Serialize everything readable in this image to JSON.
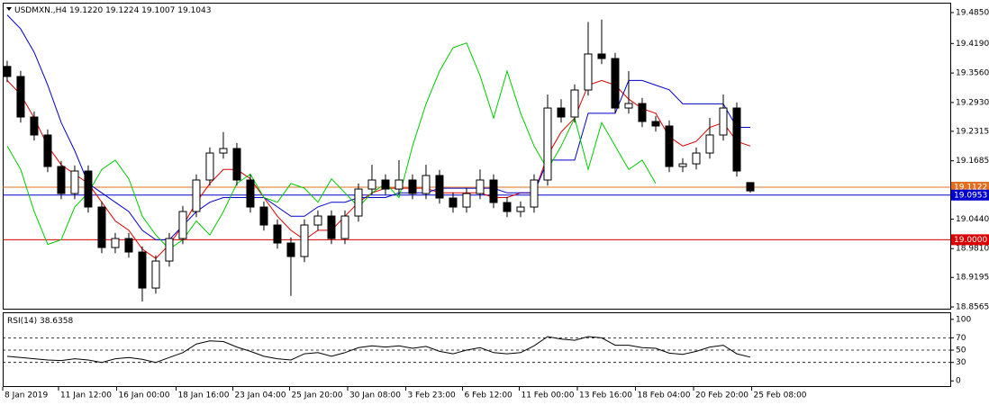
{
  "chart_data": [
    {
      "type": "candlestick",
      "title": "USDMXN.,H4",
      "ohlc_labels": [
        "19.1220",
        "19.1224",
        "19.1007",
        "19.1043"
      ],
      "open": [
        19.37,
        19.3485,
        19.262,
        19.2236,
        19.1563,
        19.0986,
        19.1467,
        19.0698,
        18.9833,
        19.0025,
        18.9737,
        18.8968,
        18.9545,
        19.0025,
        19.0602,
        19.1275,
        19.1851,
        19.1947,
        19.1275,
        19.0698,
        19.0314,
        18.9929,
        18.9641,
        19.0314,
        19.0506,
        19.0025,
        19.0506,
        19.1082,
        19.1275,
        19.1082,
        19.1275,
        19.0986,
        19.1371,
        19.089,
        19.0698,
        19.0986,
        19.1275,
        19.0794,
        19.0602,
        19.0698,
        19.1275,
        19.2812,
        19.262,
        19.3197,
        19.3966,
        19.3869,
        19.2812,
        19.2908,
        19.2524,
        19.2428,
        19.1563,
        19.162,
        19.1851,
        19.2236,
        19.2812,
        19.122
      ],
      "high": [
        19.382,
        19.3605,
        19.274,
        19.2356,
        19.1683,
        19.1587,
        19.1587,
        19.0818,
        19.0145,
        19.0145,
        18.9857,
        18.9665,
        19.0145,
        19.0722,
        19.1395,
        19.1971,
        19.23,
        19.2067,
        19.1395,
        19.0818,
        19.0434,
        19.0049,
        19.0434,
        19.0626,
        19.0626,
        19.0626,
        19.1202,
        19.16,
        19.1395,
        19.17,
        19.1395,
        19.16,
        19.1491,
        19.101,
        19.1106,
        19.15,
        19.1395,
        19.0914,
        19.0818,
        19.1395,
        19.31,
        19.3,
        19.3317,
        19.465,
        19.47,
        19.3989,
        19.36,
        19.3028,
        19.2644,
        19.2548,
        19.174,
        19.1971,
        19.26,
        19.31,
        19.2932,
        19.1224
      ],
      "low": [
        19.3365,
        19.25,
        19.2116,
        19.1443,
        19.0866,
        19.0866,
        19.0578,
        18.9713,
        18.9713,
        18.9617,
        18.868,
        18.8848,
        18.9425,
        18.9905,
        19.0482,
        19.1155,
        19.1731,
        19.1155,
        19.0578,
        19.0194,
        18.9809,
        18.88,
        18.9521,
        19.0194,
        18.9905,
        18.9905,
        19.0386,
        19.0962,
        19.0962,
        19.0962,
        19.0866,
        19.0866,
        19.077,
        19.0578,
        19.0578,
        19.0866,
        19.0674,
        19.0482,
        19.0482,
        19.0578,
        19.1155,
        19.25,
        19.25,
        19.3077,
        19.3749,
        19.2692,
        19.2692,
        19.2404,
        19.2308,
        19.1443,
        19.1443,
        19.15,
        19.1731,
        19.2116,
        19.1347,
        19.1007
      ],
      "close": [
        19.3485,
        19.262,
        19.2236,
        19.1563,
        19.0986,
        19.1467,
        19.0698,
        18.9833,
        19.0025,
        18.9737,
        18.8968,
        18.9545,
        19.0025,
        19.0602,
        19.1275,
        19.1851,
        19.1947,
        19.1275,
        19.0698,
        19.0314,
        18.9929,
        18.9641,
        19.0314,
        19.0506,
        19.0025,
        19.0506,
        19.1082,
        19.1275,
        19.1082,
        19.1275,
        19.0986,
        19.1371,
        19.089,
        19.0698,
        19.0986,
        19.1275,
        19.0794,
        19.0602,
        19.0698,
        19.1275,
        19.2812,
        19.262,
        19.3197,
        19.3966,
        19.3869,
        19.2812,
        19.2908,
        19.2524,
        19.2428,
        19.1563,
        19.162,
        19.1851,
        19.2236,
        19.2812,
        19.1467,
        19.1043
      ],
      "series": [
        {
          "color": "#dd0000",
          "values": [
            19.34,
            19.31,
            19.26,
            19.2,
            19.16,
            19.14,
            19.12,
            19.08,
            19.04,
            19.02,
            18.98,
            18.96,
            18.99,
            19.03,
            19.08,
            19.12,
            19.15,
            19.15,
            19.13,
            19.09,
            19.05,
            19.02,
            19.0,
            19.02,
            19.02,
            19.05,
            19.08,
            19.1,
            19.11,
            19.11,
            19.11,
            19.11,
            19.1,
            19.1,
            19.1,
            19.1,
            19.09,
            19.09,
            19.1,
            19.1,
            19.18,
            19.23,
            19.26,
            19.33,
            19.34,
            19.33,
            19.3,
            19.28,
            19.27,
            19.22,
            19.2,
            19.21,
            19.24,
            19.25,
            19.21,
            19.2
          ]
        },
        {
          "color": "#0000cc",
          "values": [
            19.48,
            19.45,
            19.4,
            19.33,
            19.25,
            19.19,
            19.12,
            19.1,
            19.08,
            19.06,
            19.02,
            19.0,
            19.0,
            19.03,
            19.06,
            19.08,
            19.09,
            19.09,
            19.09,
            19.09,
            19.07,
            19.05,
            19.05,
            19.07,
            19.08,
            19.08,
            19.09,
            19.09,
            19.09,
            19.1,
            19.1,
            19.1,
            19.11,
            19.11,
            19.11,
            19.11,
            19.11,
            19.1,
            19.1,
            19.1,
            19.17,
            19.17,
            19.17,
            19.27,
            19.27,
            19.27,
            19.34,
            19.34,
            19.33,
            19.32,
            19.29,
            19.29,
            19.29,
            19.29,
            19.24,
            19.24
          ]
        },
        {
          "color": "#00cc00",
          "values": [
            19.2,
            19.15,
            19.06,
            18.99,
            19.0,
            19.07,
            19.1,
            19.15,
            19.17,
            19.13,
            19.05,
            19.01,
            18.98,
            19.0,
            19.04,
            19.01,
            19.06,
            19.12,
            19.14,
            19.09,
            19.08,
            19.12,
            19.11,
            19.08,
            19.13,
            19.1,
            19.07,
            19.1,
            19.12,
            19.09,
            19.2,
            19.29,
            19.36,
            19.41,
            19.42,
            19.35,
            19.26,
            19.36,
            19.27,
            19.2,
            19.15,
            19.2,
            19.26,
            19.15,
            19.25,
            19.2,
            19.15,
            19.17,
            19.12,
            null,
            null,
            null,
            null,
            null,
            null,
            null
          ]
        }
      ],
      "price_lines": [
        {
          "value": 19.1122,
          "label": "19.1122",
          "color": "#e07020"
        },
        {
          "value": 19.0953,
          "label": "19.0953",
          "color": "#0000cc"
        },
        {
          "value": 19.0,
          "label": "19.0000",
          "color": "#dd0000"
        }
      ],
      "ylim": [
        18.8527,
        19.5061
      ],
      "yticks": [
        {
          "value": 19.485,
          "label": "19.4850"
        },
        {
          "value": 19.419,
          "label": "19.4190"
        },
        {
          "value": 19.356,
          "label": "19.3560"
        },
        {
          "value": 19.293,
          "label": "19.2930"
        },
        {
          "value": 19.2315,
          "label": "19.2315"
        },
        {
          "value": 19.1685,
          "label": "19.1685"
        },
        {
          "value": 19.044,
          "label": "19.0440"
        },
        {
          "value": 18.981,
          "label": "18.9810"
        },
        {
          "value": 18.9195,
          "label": "18.9195"
        },
        {
          "value": 18.8565,
          "label": "18.8565"
        }
      ],
      "xlim": [
        -0.33,
        69.8
      ],
      "xticks": [
        {
          "value": -0.33,
          "label": "8 Jan 2019"
        },
        {
          "value": 3.8,
          "label": "11 Jan 12:00"
        },
        {
          "value": 8.1,
          "label": "16 Jan 00:00"
        },
        {
          "value": 12.5,
          "label": "18 Jan 16:00"
        },
        {
          "value": 16.7,
          "label": "23 Jan 04:00"
        },
        {
          "value": 20.9,
          "label": "25 Jan 20:00"
        },
        {
          "value": 25.2,
          "label": "30 Jan 08:00"
        },
        {
          "value": 29.5,
          "label": "3 Feb 23:00"
        },
        {
          "value": 33.7,
          "label": "6 Feb 12:00"
        },
        {
          "value": 37.9,
          "label": "11 Feb 00:00"
        },
        {
          "value": 42.2,
          "label": "13 Feb 16:00"
        },
        {
          "value": 46.5,
          "label": "18 Feb 04:00"
        },
        {
          "value": 50.8,
          "label": "20 Feb 20:00"
        },
        {
          "value": 55.1,
          "label": "25 Feb 08:00"
        }
      ]
    },
    {
      "type": "line",
      "title": "RSI(14)",
      "color": "#000000",
      "values": [
        40,
        38,
        36,
        34,
        33,
        36,
        34,
        30,
        36,
        38,
        35,
        30,
        38,
        46,
        60,
        65,
        64,
        55,
        48,
        40,
        36,
        34,
        44,
        46,
        40,
        46,
        54,
        57,
        55,
        57,
        53,
        56,
        48,
        44,
        50,
        54,
        46,
        44,
        46,
        57,
        72,
        68,
        66,
        72,
        70,
        58,
        58,
        54,
        53,
        45,
        43,
        48,
        55,
        58,
        44,
        38.6358
      ],
      "ylim": [
        -7,
        110
      ],
      "yticks": [
        100,
        70,
        50,
        30,
        0
      ]
    }
  ]
}
